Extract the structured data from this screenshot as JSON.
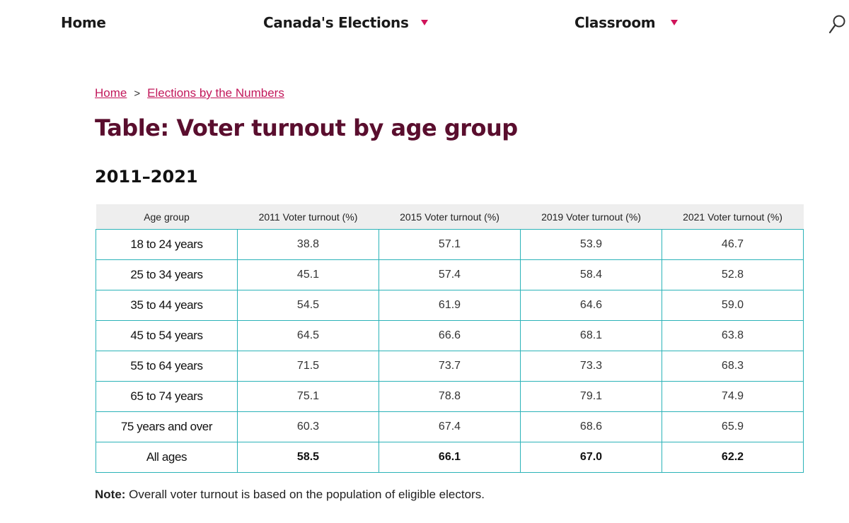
{
  "nav": {
    "home": "Home",
    "elections": "Canada's Elections",
    "classroom": "Classroom"
  },
  "breadcrumb": {
    "home": "Home",
    "separator": ">",
    "current": "Elections by the Numbers"
  },
  "title": "Table: Voter turnout by age group",
  "subtitle": "2011–2021",
  "table": {
    "headers": [
      "Age group",
      "2011 Voter turnout (%)",
      "2015 Voter turnout (%)",
      "2019 Voter turnout (%)",
      "2021 Voter turnout (%)"
    ],
    "rows": [
      [
        "18 to 24 years",
        "38.8",
        "57.1",
        "53.9",
        "46.7"
      ],
      [
        "25 to 34 years",
        "45.1",
        "57.4",
        "58.4",
        "52.8"
      ],
      [
        "35 to 44 years",
        "54.5",
        "61.9",
        "64.6",
        "59.0"
      ],
      [
        "45 to 54 years",
        "64.5",
        "66.6",
        "68.1",
        "63.8"
      ],
      [
        "55 to 64 years",
        "71.5",
        "73.7",
        "73.3",
        "68.3"
      ],
      [
        "65 to 74 years",
        "75.1",
        "78.8",
        "79.1",
        "74.9"
      ],
      [
        "75 years and over",
        "60.3",
        "67.4",
        "68.6",
        "65.9"
      ],
      [
        "All ages",
        "58.5",
        "66.1",
        "67.0",
        "62.2"
      ]
    ]
  },
  "note": {
    "label": "Note:",
    "text": " Overall voter turnout is based on the population of eligible electors."
  },
  "colors": {
    "accent": "#c2185b",
    "title": "#5a0e2e",
    "table_border": "#2bb3b8",
    "header_bg": "#eeeeee"
  }
}
